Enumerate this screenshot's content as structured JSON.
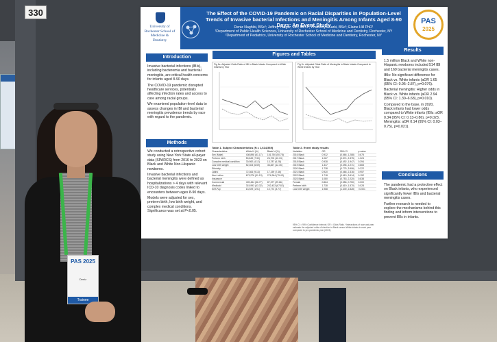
{
  "board_number": "330",
  "poster": {
    "logo_text": "University of Rochester School of Medicine & Dentistry",
    "title": "The Effect of the COVID-19 Pandemic on Racial Disparities in Population-Level Trends of Invasive bacterial Infections and Meningitis Among Infants Aged 8-90 Days: An Event Study",
    "authors": "Deniz Naghibi, BSc¹; Jeffrey Yaeger, MD, MPH²; Pratikshya Karki, BSc²; Elaine Hill PhD¹",
    "affil1": "¹Department of Public Health Sciences, University of Rochester School of Medicine and Dentistry, Rochester, NY",
    "affil2": "²Department of Pediatrics, University of Rochester School of Medicine and Dentistry, Rochester, NY",
    "pas": "PAS",
    "pas_year": "2025",
    "introduction": {
      "heading": "Introduction",
      "bullets": [
        "Invasive bacterial infections (IBIs), including bacteremia and bacterial meningitis, are critical health concerns for infants aged 8-90 days.",
        "The COVID-19 pandemic disrupted healthcare services, potentially affecting infection rates and access to care among racial groups.",
        "We examined population-level data to assess changes in IBI and bacterial meningitis prevalence trends by race with regard to the pandemic."
      ]
    },
    "methods": {
      "heading": "Methods",
      "bullets": [
        "We conducted a retrospective cohort study using New York State all-payer data (SPARCS) from 2016 to 2023 on Black and White Non-Hispanic newborns.",
        "Invasive bacterial infections and bacterial meningitis were defined as hospitalizations > 4 days with relevant ICD-10 diagnosis codes linked to encounters between ages 8-90 days.",
        "Models were adjusted for sex, preterm birth, low birth weight, and complex medical conditions. Significance was set at P<0.05."
      ]
    },
    "figures": {
      "heading": "Figures and Tables",
      "fig1_title": "Fig 1a. Adjusted Odds Ratio of IBI in Black Infants Compared to White Infants by Year",
      "fig2_title": "Fig 1b. Adjusted Odds Ratio of Meningitis in Black Infants Compared to White Infants by Year",
      "table1_title": "Table 1. Subject Characteristics (N = 1,614,569)",
      "table2_title": "Table 2. Event study results",
      "table1_rows": [
        [
          "Characteristics",
          "White N (%)",
          "Black N (%)"
        ],
        [
          "Sex (Male)",
          "408,898 (51.17)",
          "151,780 (50.78)"
        ],
        [
          "Preterm birth",
          "50,849 (7.30)",
          "26,700 (10.13)"
        ],
        [
          "Complex medical condition",
          "30,982 (4.12)",
          "13,787 (6.28)"
        ],
        [
          "Low birth weight",
          "52,303 (6.59)",
          "36,827 (12.15)"
        ],
        [
          "Ethnicity",
          "",
          ""
        ],
        [
          "Latino",
          "72,364 (9.13)",
          "17,159 (7.46)"
        ],
        [
          "Non-Latino",
          "673,276 (91.13)",
          "274,964 (79.43)"
        ],
        [
          "Insurance",
          "",
          ""
        ],
        [
          "Commercial",
          "409,454 (56.77)",
          "87,377 (29.66)"
        ],
        [
          "Medicaid",
          "315,993 (43.32)",
          "202,433 (67.82)"
        ],
        [
          "Self-Pay",
          "13,929 (1.91)",
          "10,772 (3.77)"
        ]
      ],
      "table2_rows": [
        [
          "Variables",
          "OR",
          "95% CI",
          "p-value"
        ],
        [
          "2016 Black",
          "0.932",
          "(0.666, 1.288)",
          "0.675"
        ],
        [
          "2017 Black",
          "1.067",
          "(0.574, 2.375)",
          "1.024"
        ],
        [
          "2018 Black",
          "0.938",
          "(0.492, 1.947)",
          "0.394"
        ],
        [
          "2019 Black",
          "1.347",
          "(0.496, 2.271)",
          "0.865"
        ],
        [
          "2020 Black",
          "1.738",
          "(0.775, 3.906)",
          "0.322"
        ],
        [
          "2021 Black",
          "0.920",
          "(0.466, 2.316)",
          "0.957"
        ],
        [
          "2022 Black",
          "1.718",
          "(0.619, 3.614)",
          "0.152"
        ],
        [
          "2023 Black",
          "1.080",
          "(0.753, 2.220)",
          "0.838"
        ],
        [
          "Female",
          "0.864",
          "(0.556, 0.750)",
          "0.000"
        ],
        [
          "Preterm birth",
          "1.738",
          "(0.619, 1.570)",
          "0.028"
        ],
        [
          "Low birth weight",
          "1.968",
          "(1.349, 2.828)",
          "<0.001"
        ]
      ],
      "footnote": "95% CI = 95% Confidence Interval; OR = Odds Ratio. *Interactions of race and year estimate the adjusted odds of infection in Black versus White infants in each year compared to pre-pandemic year (2019)."
    },
    "results": {
      "heading": "Results",
      "bullets": [
        "1.5 million Black and White non-Hispanic newborns included 514 IBI and 169 bacterial meningitis cases.",
        "IBIs: No significant difference for Black vs. White infants (aOR 1.65 (95% CI: 0.95–2.87), p=0.076).",
        "Bacterial meningitis: Higher odds in Black vs. White infants (aOR 2.94 (95% CI: 1.30–6.68), p=0.010).",
        "Compared to the base, in 2020, Black infants had lower odds compared to White infants (IBIs: aOR 0.34 (95% CI: 0.13–0.86), p=0.023, Meningitis: aOR 0.14 (95% CI: 0.03–0.75), p=0.021)."
      ]
    },
    "conclusions": {
      "heading": "Conclusions",
      "bullets": [
        "The pandemic had a protective effect on Black infants, who experienced significantly fewer IBIs and bacterial meningitis cases.",
        "Further research is needed to explore the mechanisms behind this finding and inform interventions to prevent IBIs in infants."
      ]
    }
  },
  "badge": {
    "logo": "PAS 2025",
    "name": "Deniz",
    "role": "Trainee"
  },
  "colors": {
    "poster_blue": "#1f5aa6",
    "lanyard_green": "#3bb54a",
    "pas_gold": "#e2a528"
  }
}
